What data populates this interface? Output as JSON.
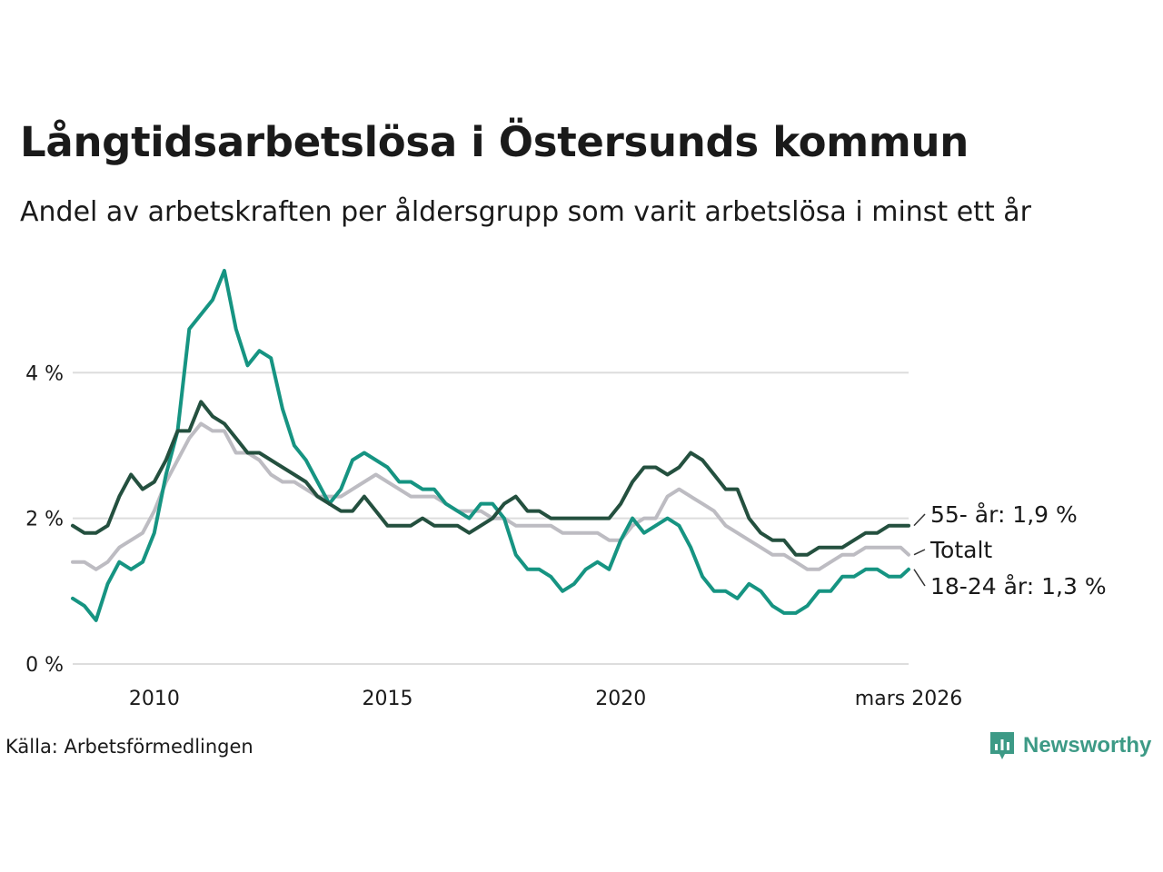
{
  "title": "Långtidsarbetslösa i Östersunds kommun",
  "subtitle": "Andel av arbetskraften per åldersgrupp som varit arbetslösa i minst ett år",
  "source": "Källa: Arbetsförmedlingen",
  "brand": "Newsworthy",
  "colors": {
    "age55": "#24503f",
    "total": "#bdbcc2",
    "youth": "#169482",
    "grid": "#dddddd",
    "brand": "#3d9a86"
  },
  "chart_data": {
    "type": "line",
    "title": "Långtidsarbetslösa i Östersunds kommun",
    "xlabel": "",
    "ylabel": "",
    "xlim": [
      2008.25,
      2026.17
    ],
    "ylim": [
      0,
      5.5
    ],
    "yticks": [
      0,
      2,
      4
    ],
    "ytick_labels": [
      "0 %",
      "2 %",
      "4 %"
    ],
    "xticks": [
      2010,
      2015,
      2020,
      2026.17
    ],
    "xtick_labels": [
      "2010",
      "2015",
      "2020",
      "mars 2026"
    ],
    "grid": true,
    "series": [
      {
        "name": "Totalt",
        "key": "total",
        "label": "Totalt",
        "x": [
          2008.25,
          2008.5,
          2008.75,
          2009.0,
          2009.25,
          2009.5,
          2009.75,
          2010.0,
          2010.25,
          2010.5,
          2010.75,
          2011.0,
          2011.25,
          2011.5,
          2011.75,
          2012.0,
          2012.25,
          2012.5,
          2012.75,
          2013.0,
          2013.25,
          2013.5,
          2013.75,
          2014.0,
          2014.25,
          2014.5,
          2014.75,
          2015.0,
          2015.25,
          2015.5,
          2015.75,
          2016.0,
          2016.25,
          2016.5,
          2016.75,
          2017.0,
          2017.25,
          2017.5,
          2017.75,
          2018.0,
          2018.25,
          2018.5,
          2018.75,
          2019.0,
          2019.25,
          2019.5,
          2019.75,
          2020.0,
          2020.25,
          2020.5,
          2020.75,
          2021.0,
          2021.25,
          2021.5,
          2021.75,
          2022.0,
          2022.25,
          2022.5,
          2022.75,
          2023.0,
          2023.25,
          2023.5,
          2023.75,
          2024.0,
          2024.25,
          2024.5,
          2024.75,
          2025.0,
          2025.25,
          2025.5,
          2025.75,
          2026.0,
          2026.17
        ],
        "values": [
          1.4,
          1.4,
          1.3,
          1.4,
          1.6,
          1.7,
          1.8,
          2.1,
          2.5,
          2.8,
          3.1,
          3.3,
          3.2,
          3.2,
          2.9,
          2.9,
          2.8,
          2.6,
          2.5,
          2.5,
          2.4,
          2.3,
          2.3,
          2.3,
          2.4,
          2.5,
          2.6,
          2.5,
          2.4,
          2.3,
          2.3,
          2.3,
          2.2,
          2.1,
          2.1,
          2.1,
          2.0,
          2.0,
          1.9,
          1.9,
          1.9,
          1.9,
          1.8,
          1.8,
          1.8,
          1.8,
          1.7,
          1.7,
          1.9,
          2.0,
          2.0,
          2.3,
          2.4,
          2.3,
          2.2,
          2.1,
          1.9,
          1.8,
          1.7,
          1.6,
          1.5,
          1.5,
          1.4,
          1.3,
          1.3,
          1.4,
          1.5,
          1.5,
          1.6,
          1.6,
          1.6,
          1.6,
          1.5
        ]
      },
      {
        "name": "55- år",
        "key": "age55",
        "label": "55- år: 1,9 %",
        "x": [
          2008.25,
          2008.5,
          2008.75,
          2009.0,
          2009.25,
          2009.5,
          2009.75,
          2010.0,
          2010.25,
          2010.5,
          2010.75,
          2011.0,
          2011.25,
          2011.5,
          2011.75,
          2012.0,
          2012.25,
          2012.5,
          2012.75,
          2013.0,
          2013.25,
          2013.5,
          2013.75,
          2014.0,
          2014.25,
          2014.5,
          2014.75,
          2015.0,
          2015.25,
          2015.5,
          2015.75,
          2016.0,
          2016.25,
          2016.5,
          2016.75,
          2017.0,
          2017.25,
          2017.5,
          2017.75,
          2018.0,
          2018.25,
          2018.5,
          2018.75,
          2019.0,
          2019.25,
          2019.5,
          2019.75,
          2020.0,
          2020.25,
          2020.5,
          2020.75,
          2021.0,
          2021.25,
          2021.5,
          2021.75,
          2022.0,
          2022.25,
          2022.5,
          2022.75,
          2023.0,
          2023.25,
          2023.5,
          2023.75,
          2024.0,
          2024.25,
          2024.5,
          2024.75,
          2025.0,
          2025.25,
          2025.5,
          2025.75,
          2026.0,
          2026.17
        ],
        "values": [
          1.9,
          1.8,
          1.8,
          1.9,
          2.3,
          2.6,
          2.4,
          2.5,
          2.8,
          3.2,
          3.2,
          3.6,
          3.4,
          3.3,
          3.1,
          2.9,
          2.9,
          2.8,
          2.7,
          2.6,
          2.5,
          2.3,
          2.2,
          2.1,
          2.1,
          2.3,
          2.1,
          1.9,
          1.9,
          1.9,
          2.0,
          1.9,
          1.9,
          1.9,
          1.8,
          1.9,
          2.0,
          2.2,
          2.3,
          2.1,
          2.1,
          2.0,
          2.0,
          2.0,
          2.0,
          2.0,
          2.0,
          2.2,
          2.5,
          2.7,
          2.7,
          2.6,
          2.7,
          2.9,
          2.8,
          2.6,
          2.4,
          2.4,
          2.0,
          1.8,
          1.7,
          1.7,
          1.5,
          1.5,
          1.6,
          1.6,
          1.6,
          1.7,
          1.8,
          1.8,
          1.9,
          1.9,
          1.9
        ]
      },
      {
        "name": "18-24 år",
        "key": "youth",
        "label": "18-24 år: 1,3 %",
        "x": [
          2008.25,
          2008.5,
          2008.75,
          2009.0,
          2009.25,
          2009.5,
          2009.75,
          2010.0,
          2010.25,
          2010.5,
          2010.75,
          2011.0,
          2011.25,
          2011.5,
          2011.75,
          2012.0,
          2012.25,
          2012.5,
          2012.75,
          2013.0,
          2013.25,
          2013.5,
          2013.75,
          2014.0,
          2014.25,
          2014.5,
          2014.75,
          2015.0,
          2015.25,
          2015.5,
          2015.75,
          2016.0,
          2016.25,
          2016.5,
          2016.75,
          2017.0,
          2017.25,
          2017.5,
          2017.75,
          2018.0,
          2018.25,
          2018.5,
          2018.75,
          2019.0,
          2019.25,
          2019.5,
          2019.75,
          2020.0,
          2020.25,
          2020.5,
          2020.75,
          2021.0,
          2021.25,
          2021.5,
          2021.75,
          2022.0,
          2022.25,
          2022.5,
          2022.75,
          2023.0,
          2023.25,
          2023.5,
          2023.75,
          2024.0,
          2024.25,
          2024.5,
          2024.75,
          2025.0,
          2025.25,
          2025.5,
          2025.75,
          2026.0,
          2026.17
        ],
        "values": [
          0.9,
          0.8,
          0.6,
          1.1,
          1.4,
          1.3,
          1.4,
          1.8,
          2.6,
          3.2,
          4.6,
          4.8,
          5.0,
          5.4,
          4.6,
          4.1,
          4.3,
          4.2,
          3.5,
          3.0,
          2.8,
          2.5,
          2.2,
          2.4,
          2.8,
          2.9,
          2.8,
          2.7,
          2.5,
          2.5,
          2.4,
          2.4,
          2.2,
          2.1,
          2.0,
          2.2,
          2.2,
          2.0,
          1.5,
          1.3,
          1.3,
          1.2,
          1.0,
          1.1,
          1.3,
          1.4,
          1.3,
          1.7,
          2.0,
          1.8,
          1.9,
          2.0,
          1.9,
          1.6,
          1.2,
          1.0,
          1.0,
          0.9,
          1.1,
          1.0,
          0.8,
          0.7,
          0.7,
          0.8,
          1.0,
          1.0,
          1.2,
          1.2,
          1.3,
          1.3,
          1.2,
          1.2,
          1.3
        ]
      }
    ]
  }
}
